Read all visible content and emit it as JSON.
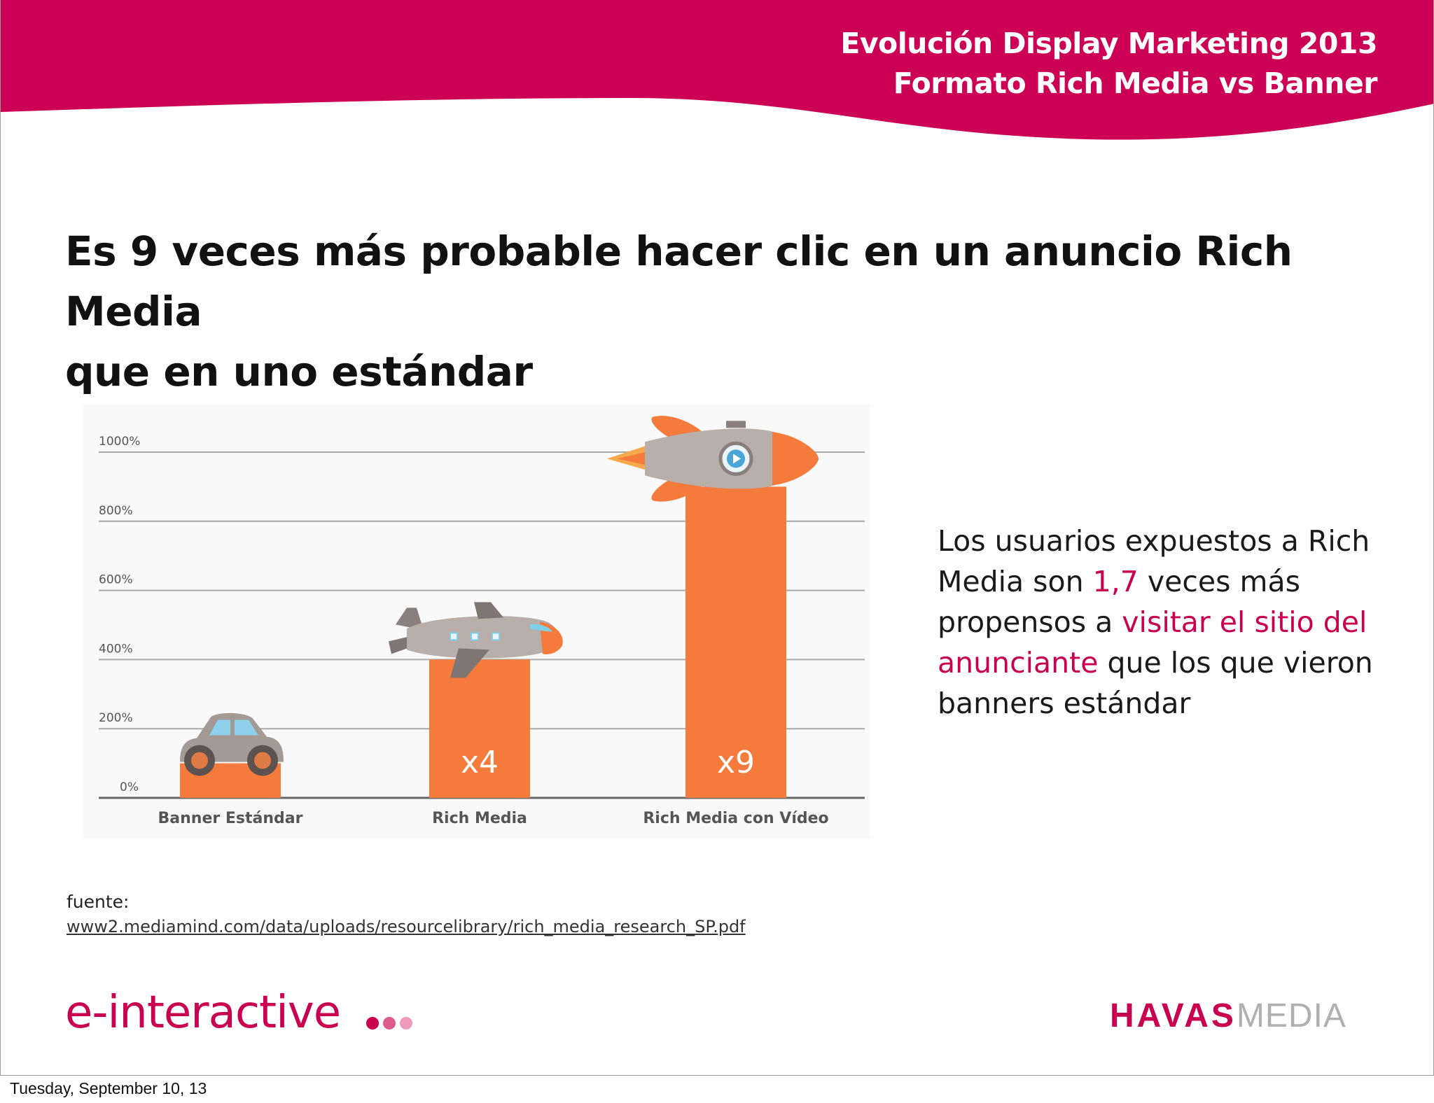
{
  "header": {
    "title_line1": "Evolución Display Marketing 2013",
    "title_line2": "Formato Rich Media vs Banner",
    "color": "#cc0055"
  },
  "headline": {
    "line1": "Es 9 veces más probable hacer clic en un anuncio Rich Media",
    "line2": "que en uno estándar"
  },
  "chart_data": {
    "type": "bar",
    "categories": [
      "Banner Estándar",
      "Rich Media",
      "Rich Media con Vídeo"
    ],
    "values": [
      100,
      400,
      900
    ],
    "data_labels": [
      "",
      "x4",
      "x9"
    ],
    "icons": [
      "car-icon",
      "airplane-icon",
      "rocket-icon"
    ],
    "ylim": [
      0,
      1000
    ],
    "yticks": [
      0,
      200,
      400,
      600,
      800,
      1000
    ],
    "ytick_labels": [
      "0%",
      "200%",
      "400%",
      "600%",
      "800%",
      "1000%"
    ],
    "grid": true,
    "bar_color": "#f47b3b"
  },
  "side_text": {
    "part1": "Los usuarios expuestos a Rich Media son ",
    "highlight1": "1,7",
    "part2": " veces más propensos a ",
    "highlight2": "visitar el sitio del anunciante",
    "part3": " que los que vieron banners estándar"
  },
  "source": {
    "label": "fuente:",
    "url": "www2.mediamind.com/data/uploads/resourcelibrary/rich_media_research_SP.pdf"
  },
  "logos": {
    "left": "e-interactive",
    "right_bold": "HAVAS",
    "right_light": "MEDIA"
  },
  "footer": {
    "date": "Tuesday, September 10, 13"
  }
}
